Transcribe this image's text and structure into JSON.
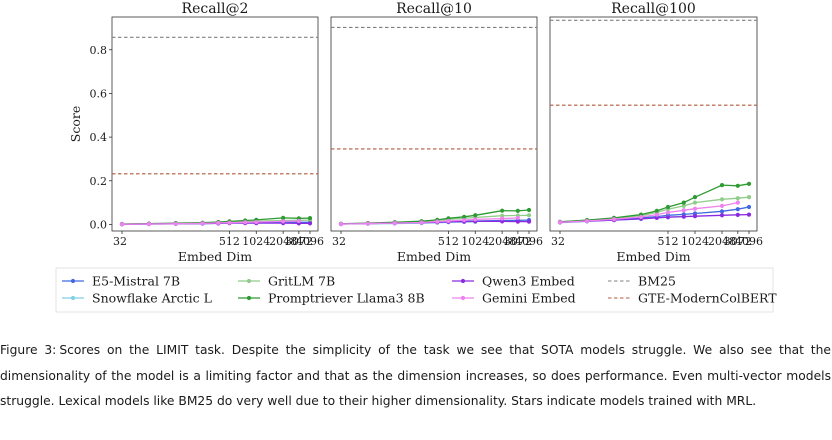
{
  "chart_data": {
    "type": "line",
    "ylabel": "Score",
    "ylim": [
      -0.03,
      0.95
    ],
    "yticks": [
      0.0,
      0.2,
      0.4,
      0.6,
      0.8
    ],
    "ytick_labels": [
      "0.0",
      "0.2",
      "0.4",
      "0.6",
      "0.8"
    ],
    "xticks": [
      32,
      512,
      1024,
      2048,
      3072,
      4096
    ],
    "xtick_labels": [
      "32",
      "512",
      "1024",
      "2048",
      "3072",
      "4096"
    ],
    "x": [
      32,
      64,
      128,
      256,
      384,
      512,
      768,
      1024,
      2048,
      3072,
      4096
    ],
    "panels": [
      {
        "title": "Recall@2",
        "xlabel": "Embed Dim",
        "baselines": [
          {
            "name": "BM25",
            "value": 0.857
          },
          {
            "name": "GTE-ModernColBERT",
            "value": 0.232
          }
        ],
        "series": [
          {
            "name": "E5-Mistral 7B",
            "values": [
              0.001,
              0.002,
              0.003,
              0.004,
              0.006,
              0.007,
              0.009,
              0.01,
              0.01,
              0.01,
              0.01
            ]
          },
          {
            "name": "Snowflake Arctic L",
            "values": [
              0.001,
              0.002,
              0.002,
              0.003,
              0.005,
              0.006,
              0.007,
              0.008,
              null,
              null,
              null
            ]
          },
          {
            "name": "GritLM 7B",
            "values": [
              0.002,
              0.004,
              0.005,
              0.007,
              0.009,
              0.011,
              0.013,
              0.015,
              0.018,
              0.019,
              0.02
            ]
          },
          {
            "name": "Promptriever Llama3 8B",
            "values": [
              0.002,
              0.004,
              0.006,
              0.008,
              0.011,
              0.014,
              0.018,
              0.021,
              0.03,
              0.028,
              0.029
            ]
          },
          {
            "name": "Qwen3 Embed",
            "values": [
              0.001,
              0.002,
              0.003,
              0.004,
              0.005,
              0.006,
              0.006,
              0.006,
              0.006,
              0.005,
              0.005
            ]
          },
          {
            "name": "Gemini Embed",
            "values": [
              0.001,
              0.002,
              0.003,
              0.005,
              0.007,
              0.008,
              0.01,
              0.011,
              0.014,
              0.016,
              null
            ]
          }
        ]
      },
      {
        "title": "Recall@10",
        "xlabel": "Embed Dim",
        "baselines": [
          {
            "name": "BM25",
            "value": 0.902
          },
          {
            "name": "GTE-ModernColBERT",
            "value": 0.346
          }
        ],
        "series": [
          {
            "name": "E5-Mistral 7B",
            "values": [
              0.002,
              0.004,
              0.006,
              0.008,
              0.01,
              0.012,
              0.014,
              0.016,
              0.018,
              0.019,
              0.02
            ]
          },
          {
            "name": "Snowflake Arctic L",
            "values": [
              0.002,
              0.003,
              0.004,
              0.006,
              0.008,
              0.01,
              0.011,
              0.012,
              null,
              null,
              null
            ]
          },
          {
            "name": "GritLM 7B",
            "values": [
              0.003,
              0.006,
              0.009,
              0.013,
              0.018,
              0.023,
              0.028,
              0.032,
              0.04,
              0.041,
              0.042
            ]
          },
          {
            "name": "Promptriever Llama3 8B",
            "values": [
              0.003,
              0.006,
              0.01,
              0.015,
              0.021,
              0.028,
              0.035,
              0.042,
              0.063,
              0.062,
              0.066
            ]
          },
          {
            "name": "Qwen3 Embed",
            "values": [
              0.002,
              0.004,
              0.006,
              0.008,
              0.01,
              0.012,
              0.013,
              0.014,
              0.014,
              0.013,
              0.013
            ]
          },
          {
            "name": "Gemini Embed",
            "values": [
              0.002,
              0.004,
              0.006,
              0.009,
              0.013,
              0.016,
              0.02,
              0.023,
              0.027,
              0.03,
              null
            ]
          }
        ]
      },
      {
        "title": "Recall@100",
        "xlabel": "Embed Dim",
        "baselines": [
          {
            "name": "BM25",
            "value": 0.935
          },
          {
            "name": "GTE-ModernColBERT",
            "value": 0.546
          }
        ],
        "series": [
          {
            "name": "E5-Mistral 7B",
            "values": [
              0.01,
              0.016,
              0.022,
              0.03,
              0.036,
              0.042,
              0.046,
              0.05,
              0.06,
              0.07,
              0.08
            ]
          },
          {
            "name": "Snowflake Arctic L",
            "values": [
              0.008,
              0.014,
              0.02,
              0.025,
              0.03,
              0.034,
              0.036,
              0.038,
              null,
              null,
              null
            ]
          },
          {
            "name": "GritLM 7B",
            "values": [
              0.012,
              0.02,
              0.028,
              0.04,
              0.055,
              0.07,
              0.085,
              0.1,
              0.115,
              0.12,
              0.125
            ]
          },
          {
            "name": "Promptriever Llama3 8B",
            "values": [
              0.012,
              0.02,
              0.03,
              0.045,
              0.062,
              0.08,
              0.1,
              0.125,
              0.18,
              0.177,
              0.186
            ]
          },
          {
            "name": "Qwen3 Embed",
            "values": [
              0.01,
              0.015,
              0.02,
              0.026,
              0.03,
              0.033,
              0.036,
              0.038,
              0.042,
              0.044,
              0.045
            ]
          },
          {
            "name": "Gemini Embed",
            "values": [
              0.01,
              0.016,
              0.024,
              0.034,
              0.045,
              0.055,
              0.065,
              0.072,
              0.085,
              0.1,
              null
            ]
          }
        ]
      }
    ],
    "legend": [
      {
        "name": "E5-Mistral 7B",
        "style": "line-dot",
        "color": "#4169e1"
      },
      {
        "name": "Snowflake Arctic L",
        "style": "line-dot",
        "color": "#7fd1e3"
      },
      {
        "name": "GritLM 7B",
        "style": "line-dot",
        "color": "#90cc8a"
      },
      {
        "name": "Promptriever Llama3 8B",
        "style": "line-dot",
        "color": "#2e9a32"
      },
      {
        "name": "Qwen3 Embed",
        "style": "line-dot",
        "color": "#8a2be2"
      },
      {
        "name": "Gemini Embed",
        "style": "line-dot",
        "color": "#ee82ee"
      },
      {
        "name": "BM25",
        "style": "dashed",
        "color": "#808080"
      },
      {
        "name": "GTE-ModernColBERT",
        "style": "dashed",
        "color": "#b05a3c"
      }
    ]
  },
  "caption": {
    "label": "Figure 3:",
    "text": "Scores on the LIMIT task. Despite the simplicity of the task we see that SOTA models struggle. We also see that the dimensionality of the model is a limiting factor and that as the dimension increases, so does performance. Even multi-vector models struggle. Lexical models like BM25 do very well due to their higher dimensionality. Stars indicate models trained with MRL."
  }
}
